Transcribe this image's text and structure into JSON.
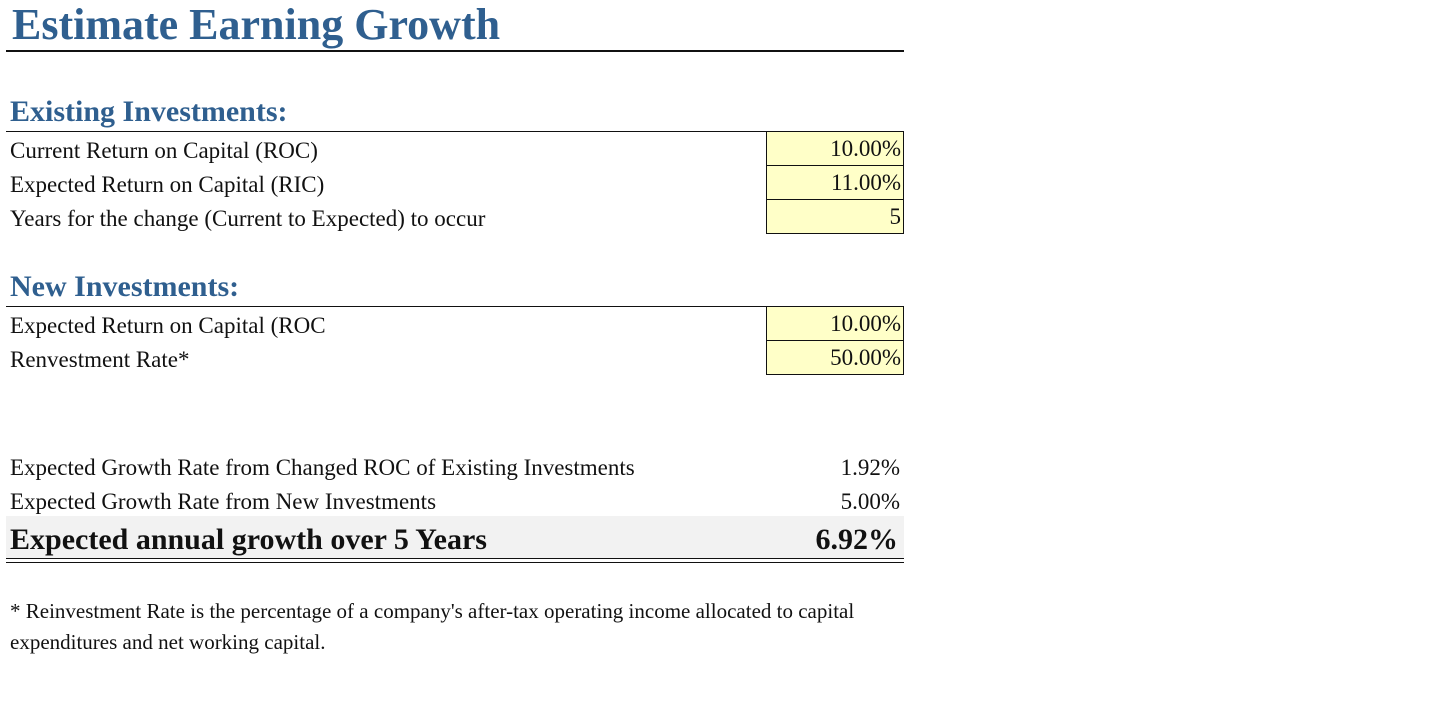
{
  "title": "Estimate Earning Growth",
  "existing": {
    "heading": "Existing Investments:",
    "rows": [
      {
        "label": "Current Return on Capital (ROC)",
        "value": "10.00%"
      },
      {
        "label": "Expected Return on Capital (RIC)",
        "value": "11.00%"
      },
      {
        "label": "Years for the change (Current to Expected) to occur",
        "value": "5"
      }
    ]
  },
  "new": {
    "heading": "New Investments:",
    "rows": [
      {
        "label": "Expected Return on Capital (ROC",
        "value": "10.00%"
      },
      {
        "label": "Renvestment Rate*",
        "value": "50.00%"
      }
    ]
  },
  "results": {
    "rows": [
      {
        "label": "Expected Growth Rate from Changed ROC of Existing Investments",
        "value": "1.92%"
      },
      {
        "label": "Expected Growth Rate from New Investments",
        "value": "5.00%"
      }
    ],
    "total_label": "Expected annual growth over 5 Years",
    "total_value": "6.92%"
  },
  "footnote": "* Reinvestment Rate is the percentage of a company's after-tax operating income allocated to capital expenditures and net working capital.",
  "colors": {
    "heading": "#2f5f8f",
    "input_fill": "#ffffc8",
    "total_band": "#f2f2f2"
  }
}
